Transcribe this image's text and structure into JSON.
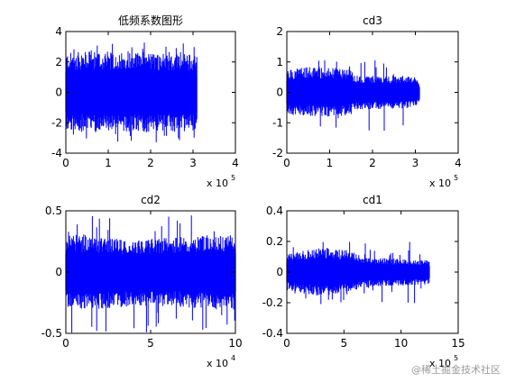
{
  "chart_data": [
    {
      "type": "line",
      "title": "低频系数图形",
      "xlim": [
        0,
        4
      ],
      "ylim": [
        -4,
        4
      ],
      "x_ticks": [
        "0",
        "1",
        "2",
        "3",
        "4"
      ],
      "y_ticks": [
        "-4",
        "-2",
        "0",
        "2",
        "4"
      ],
      "x_multiplier": "x 10",
      "x_multiplier_exp": "5",
      "series": [
        {
          "color": "#0000ff",
          "signal": [
            {
              "x": 0.0,
              "upper": 2.6,
              "lower": -2.6
            },
            {
              "x": 0.5,
              "upper": 2.7,
              "lower": -2.6
            },
            {
              "x": 1.0,
              "upper": 2.6,
              "lower": -2.7
            },
            {
              "x": 1.5,
              "upper": 2.8,
              "lower": -2.6
            },
            {
              "x": 2.0,
              "upper": 2.6,
              "lower": -2.7
            },
            {
              "x": 2.5,
              "upper": 2.6,
              "lower": -2.6
            },
            {
              "x": 3.0,
              "upper": 2.5,
              "lower": -2.6
            },
            {
              "x": 3.1,
              "upper": 2.4,
              "lower": -2.5
            }
          ],
          "peak_max": 3.3,
          "peak_min": -3.3
        }
      ],
      "grid": false
    },
    {
      "type": "line",
      "title": "cd3",
      "xlim": [
        0,
        4
      ],
      "ylim": [
        -2,
        2
      ],
      "x_ticks": [
        "0",
        "1",
        "2",
        "3",
        "4"
      ],
      "y_ticks": [
        "-2",
        "-1",
        "0",
        "1",
        "2"
      ],
      "x_multiplier": "x 10",
      "x_multiplier_exp": "5",
      "series": [
        {
          "color": "#0000ff",
          "signal": [
            {
              "x": 0.0,
              "upper": 0.75,
              "lower": -0.75
            },
            {
              "x": 0.5,
              "upper": 0.85,
              "lower": -0.8
            },
            {
              "x": 1.0,
              "upper": 0.8,
              "lower": -0.8
            },
            {
              "x": 1.5,
              "upper": 0.8,
              "lower": -0.75
            },
            {
              "x": 1.55,
              "upper": 0.55,
              "lower": -0.6
            },
            {
              "x": 2.0,
              "upper": 0.55,
              "lower": -0.55
            },
            {
              "x": 2.5,
              "upper": 0.55,
              "lower": -0.55
            },
            {
              "x": 3.0,
              "upper": 0.5,
              "lower": -0.5
            },
            {
              "x": 3.1,
              "upper": 0.3,
              "lower": -0.3
            }
          ],
          "peak_max": 1.1,
          "peak_min": -1.3
        }
      ],
      "grid": false
    },
    {
      "type": "line",
      "title": "cd2",
      "xlim": [
        0,
        10
      ],
      "ylim": [
        -0.5,
        0.5
      ],
      "x_ticks": [
        "0",
        "5",
        "10"
      ],
      "y_ticks": [
        "-0.5",
        "0",
        "0.5"
      ],
      "x_multiplier": "x 10",
      "x_multiplier_exp": "4",
      "series": [
        {
          "color": "#0000ff",
          "signal": [
            {
              "x": 0.0,
              "upper": 0.3,
              "lower": -0.3
            },
            {
              "x": 2.0,
              "upper": 0.28,
              "lower": -0.3
            },
            {
              "x": 4.0,
              "upper": 0.26,
              "lower": -0.28
            },
            {
              "x": 6.0,
              "upper": 0.28,
              "lower": -0.28
            },
            {
              "x": 8.0,
              "upper": 0.3,
              "lower": -0.3
            },
            {
              "x": 10.0,
              "upper": 0.3,
              "lower": -0.32
            }
          ],
          "peak_max": 0.5,
          "peak_min": -0.5
        }
      ],
      "grid": false
    },
    {
      "type": "line",
      "title": "cd1",
      "xlim": [
        0,
        15
      ],
      "ylim": [
        -0.4,
        0.4
      ],
      "x_ticks": [
        "0",
        "5",
        "10",
        "15"
      ],
      "y_ticks": [
        "-0.4",
        "-0.2",
        "0",
        "0.2",
        "0.4"
      ],
      "x_multiplier": "x 10",
      "x_multiplier_exp": "5",
      "series": [
        {
          "color": "#0000ff",
          "signal": [
            {
              "x": 0.0,
              "upper": 0.12,
              "lower": -0.12
            },
            {
              "x": 3.0,
              "upper": 0.16,
              "lower": -0.16
            },
            {
              "x": 6.0,
              "upper": 0.14,
              "lower": -0.12
            },
            {
              "x": 6.5,
              "upper": 0.1,
              "lower": -0.1
            },
            {
              "x": 9.0,
              "upper": 0.09,
              "lower": -0.09
            },
            {
              "x": 12.5,
              "upper": 0.08,
              "lower": -0.08
            }
          ],
          "peak_max": 0.2,
          "peak_min": -0.25
        }
      ],
      "grid": false
    }
  ],
  "watermark": "@稀土掘金技术社区"
}
